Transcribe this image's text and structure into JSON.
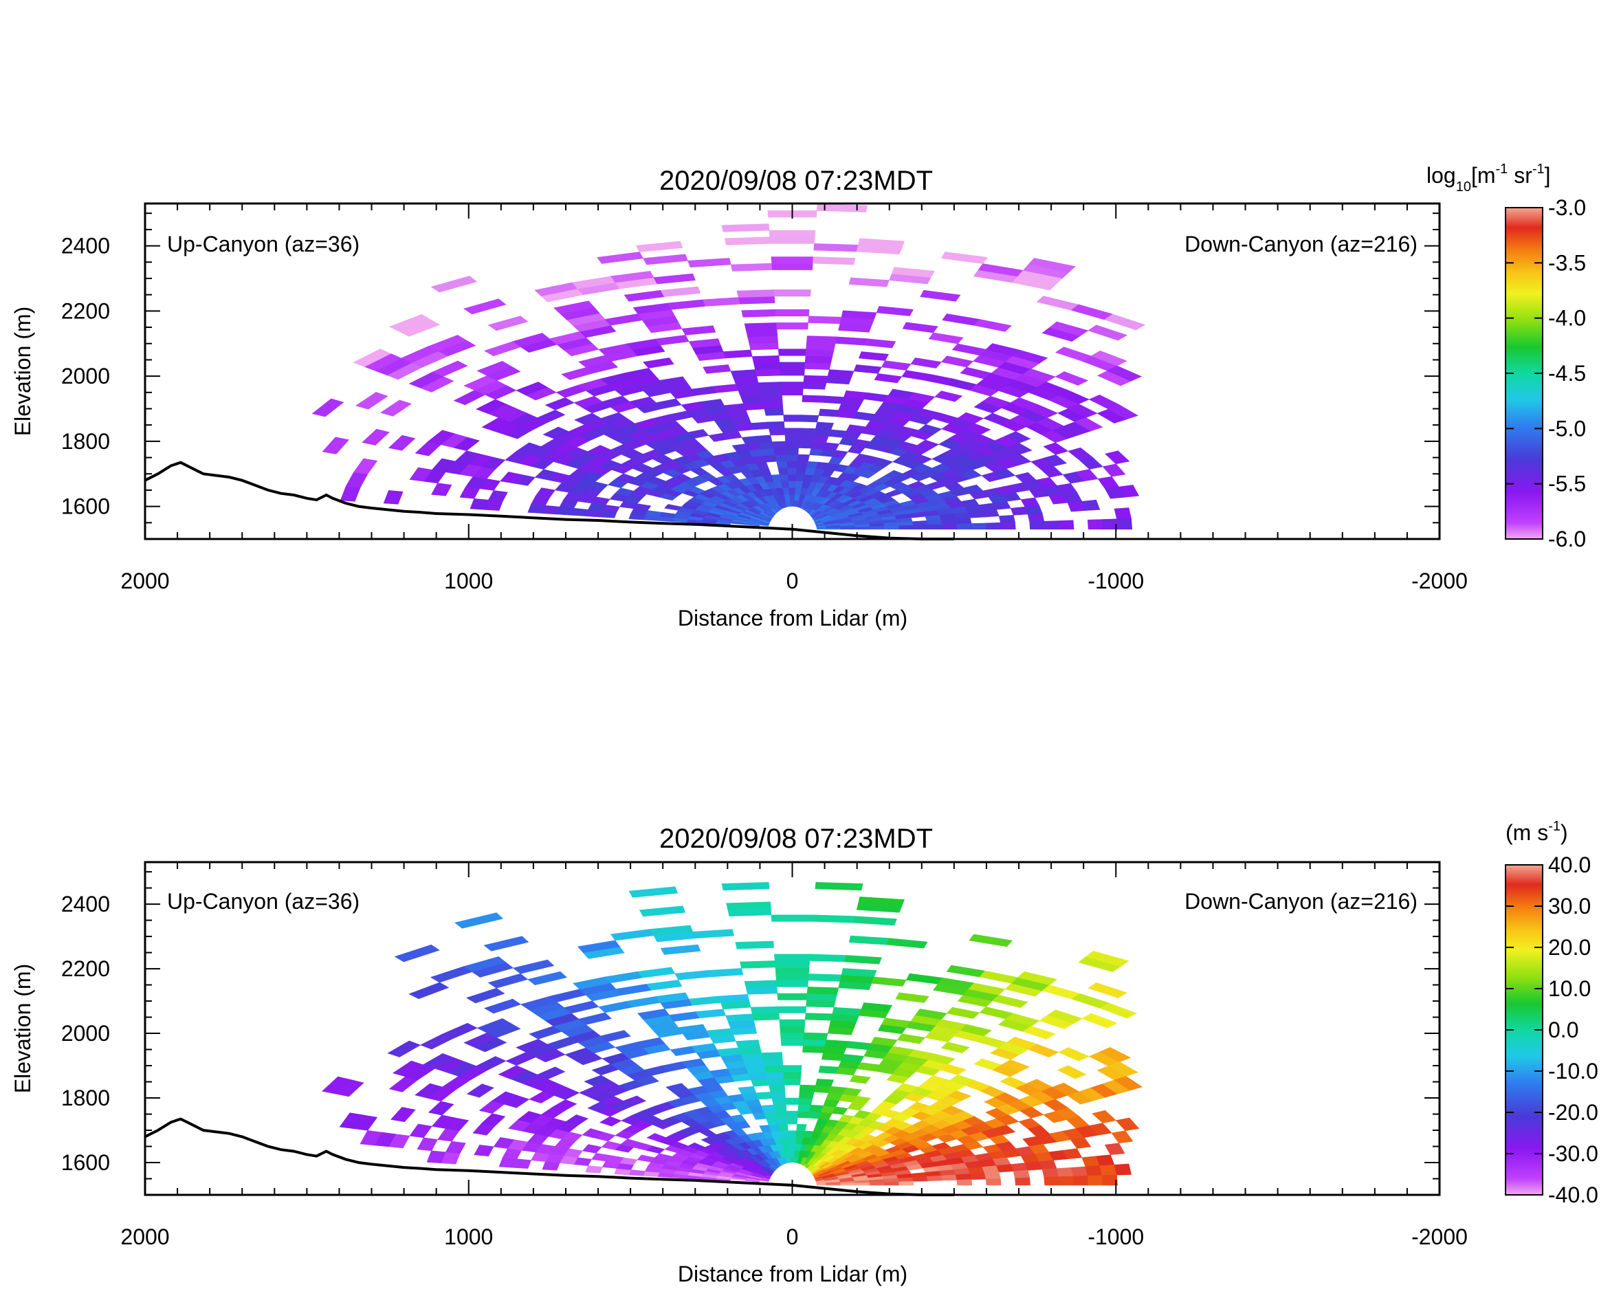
{
  "chart_data": [
    {
      "type": "heatmap",
      "title": "2020/09/08 07:23MDT",
      "xlabel": "Distance from Lidar (m)",
      "ylabel": "Elevation (m)",
      "xlim": [
        2000,
        -2000
      ],
      "ylim": [
        1500,
        2530
      ],
      "x_ticks": [
        "2000",
        "1000",
        "0",
        "-1000",
        "-2000"
      ],
      "y_ticks": [
        "1600",
        "1800",
        "2000",
        "2200",
        "2400"
      ],
      "annotation_left": "Up-Canyon (az=36)",
      "annotation_right": "Down-Canyon (az=216)",
      "colorbar": {
        "label_main": "log",
        "label_sub": "10",
        "label_rest_1": "[m",
        "label_sup_1": "-1",
        "label_rest_2": " sr",
        "label_sup_2": "-1",
        "label_end": "]",
        "range": [
          -6.0,
          -3.0
        ],
        "ticks": [
          "-3.0",
          "-3.5",
          "-4.0",
          "-4.5",
          "-5.0",
          "-5.5",
          "-6.0"
        ]
      },
      "field": "backscatter",
      "terrain": [
        [
          2000,
          1680
        ],
        [
          1960,
          1700
        ],
        [
          1920,
          1725
        ],
        [
          1890,
          1735
        ],
        [
          1860,
          1720
        ],
        [
          1820,
          1700
        ],
        [
          1780,
          1695
        ],
        [
          1740,
          1690
        ],
        [
          1700,
          1680
        ],
        [
          1660,
          1665
        ],
        [
          1620,
          1650
        ],
        [
          1580,
          1640
        ],
        [
          1540,
          1635
        ],
        [
          1500,
          1625
        ],
        [
          1470,
          1620
        ],
        [
          1440,
          1635
        ],
        [
          1420,
          1625
        ],
        [
          1380,
          1610
        ],
        [
          1340,
          1600
        ],
        [
          1300,
          1595
        ],
        [
          1250,
          1590
        ],
        [
          1200,
          1585
        ],
        [
          1150,
          1582
        ],
        [
          1100,
          1578
        ],
        [
          1000,
          1575
        ],
        [
          900,
          1570
        ],
        [
          800,
          1565
        ],
        [
          700,
          1560
        ],
        [
          600,
          1557
        ],
        [
          500,
          1552
        ],
        [
          400,
          1548
        ],
        [
          300,
          1545
        ],
        [
          200,
          1540
        ],
        [
          100,
          1535
        ],
        [
          0,
          1530
        ],
        [
          -100,
          1520
        ],
        [
          -200,
          1510
        ],
        [
          -300,
          1503
        ],
        [
          -400,
          1500
        ],
        [
          -500,
          1500
        ]
      ]
    },
    {
      "type": "heatmap",
      "title": "2020/09/08 07:23MDT",
      "xlabel": "Distance from Lidar (m)",
      "ylabel": "Elevation (m)",
      "xlim": [
        2000,
        -2000
      ],
      "ylim": [
        1500,
        2530
      ],
      "x_ticks": [
        "2000",
        "1000",
        "0",
        "-1000",
        "-2000"
      ],
      "y_ticks": [
        "1600",
        "1800",
        "2000",
        "2200",
        "2400"
      ],
      "annotation_left": "Up-Canyon (az=36)",
      "annotation_right": "Down-Canyon (az=216)",
      "colorbar": {
        "label_main": "(m s",
        "label_sup_1": "-1",
        "label_end": ")",
        "range": [
          -40.0,
          40.0
        ],
        "ticks": [
          "40.0",
          "30.0",
          "20.0",
          "10.0",
          "0.0",
          "-10.0",
          "-20.0",
          "-30.0",
          "-40.0"
        ]
      },
      "field": "radial-velocity",
      "terrain": [
        [
          2000,
          1680
        ],
        [
          1960,
          1700
        ],
        [
          1920,
          1725
        ],
        [
          1890,
          1735
        ],
        [
          1860,
          1720
        ],
        [
          1820,
          1700
        ],
        [
          1780,
          1695
        ],
        [
          1740,
          1690
        ],
        [
          1700,
          1680
        ],
        [
          1660,
          1665
        ],
        [
          1620,
          1650
        ],
        [
          1580,
          1640
        ],
        [
          1540,
          1635
        ],
        [
          1500,
          1625
        ],
        [
          1470,
          1620
        ],
        [
          1440,
          1635
        ],
        [
          1420,
          1625
        ],
        [
          1380,
          1610
        ],
        [
          1340,
          1600
        ],
        [
          1300,
          1595
        ],
        [
          1250,
          1590
        ],
        [
          1200,
          1585
        ],
        [
          1150,
          1582
        ],
        [
          1100,
          1578
        ],
        [
          1000,
          1575
        ],
        [
          900,
          1570
        ],
        [
          800,
          1565
        ],
        [
          700,
          1560
        ],
        [
          600,
          1557
        ],
        [
          500,
          1552
        ],
        [
          400,
          1548
        ],
        [
          300,
          1545
        ],
        [
          200,
          1540
        ],
        [
          100,
          1535
        ],
        [
          0,
          1530
        ],
        [
          -100,
          1520
        ],
        [
          -200,
          1510
        ],
        [
          -300,
          1503
        ],
        [
          -400,
          1500
        ],
        [
          -500,
          1500
        ]
      ]
    }
  ]
}
